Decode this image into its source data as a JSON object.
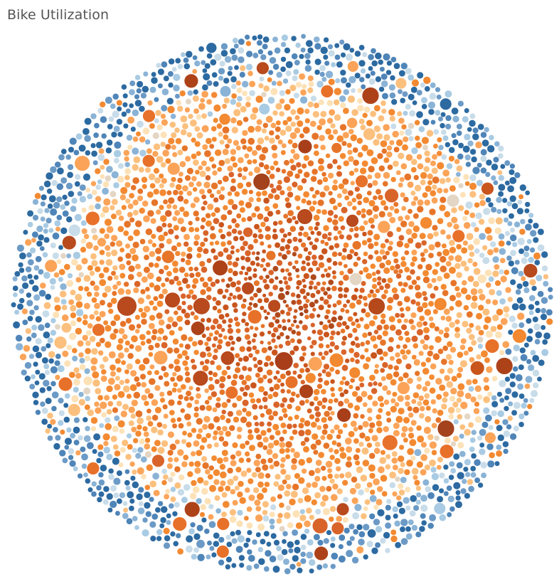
{
  "title": "Bike Utilization",
  "chart_data": {
    "type": "packed-bubble",
    "title": "Bike Utilization",
    "legend": "none",
    "color_scale": {
      "type": "diverging",
      "low_colors": [
        "#2c6aa1",
        "#4f85b8",
        "#6b9ac6",
        "#8ab3d6",
        "#a9cbe3",
        "#c8dce9",
        "#e4d6c4"
      ],
      "high_colors": [
        "#fde2b8",
        "#fcc07e",
        "#fba459",
        "#f38a32",
        "#e6752a",
        "#d9642a",
        "#c9551d",
        "#b04a1c",
        "#9e3c18"
      ]
    },
    "highlighted_bubbles": [
      {
        "color": "#b84a1d",
        "value": 14
      },
      {
        "color": "#a83f1a",
        "value": 13
      },
      {
        "color": "#b6491b",
        "value": 12
      },
      {
        "color": "#a3421c",
        "value": 12
      },
      {
        "color": "#ad4219",
        "value": 12
      },
      {
        "color": "#b84a1d",
        "value": 12
      },
      {
        "color": "#a3421c",
        "value": 12
      },
      {
        "color": "#ad4219",
        "value": 12
      },
      {
        "color": "#e8712a",
        "value": 11
      },
      {
        "color": "#b84a1d",
        "value": 11
      },
      {
        "color": "#fba459",
        "value": 11
      },
      {
        "color": "#ad4219",
        "value": 11
      },
      {
        "color": "#d9642a",
        "value": 11
      },
      {
        "color": "#b84a1d",
        "value": 11
      },
      {
        "color": "#ad4219",
        "value": 11
      },
      {
        "color": "#b84a1d",
        "value": 11
      },
      {
        "color": "#a83f1a",
        "value": 10
      },
      {
        "color": "#e8712a",
        "value": 10
      },
      {
        "color": "#b84a1d",
        "value": 10
      },
      {
        "color": "#ad4219",
        "value": 10
      },
      {
        "color": "#ad4219",
        "value": 10
      },
      {
        "color": "#c9551d",
        "value": 10
      },
      {
        "color": "#e8712a",
        "value": 10
      },
      {
        "color": "#ad4219",
        "value": 10
      },
      {
        "color": "#b84a1d",
        "value": 10
      },
      {
        "color": "#f2882f",
        "value": 10
      },
      {
        "color": "#ad4219",
        "value": 10
      },
      {
        "color": "#fba459",
        "value": 10
      },
      {
        "color": "#d9642a",
        "value": 10
      },
      {
        "color": "#e8712a",
        "value": 10
      },
      {
        "color": "#e8712a",
        "value": 10
      },
      {
        "color": "#f2882f",
        "value": 10
      },
      {
        "color": "#e8712a",
        "value": 10
      },
      {
        "color": "#b84a1d",
        "value": 10
      },
      {
        "color": "#a83f1a",
        "value": 10
      },
      {
        "color": "#e8712a",
        "value": 10
      },
      {
        "color": "#fba459",
        "value": 10
      },
      {
        "color": "#d9642a",
        "value": 9
      },
      {
        "color": "#e8712a",
        "value": 9
      },
      {
        "color": "#e8712a",
        "value": 9
      },
      {
        "color": "#e4d6c4",
        "value": 9
      },
      {
        "color": "#fcc07e",
        "value": 9
      },
      {
        "color": "#b84a1d",
        "value": 9
      },
      {
        "color": "#b84a1d",
        "value": 9
      },
      {
        "color": "#e8712a",
        "value": 9
      },
      {
        "color": "#d9642a",
        "value": 9
      },
      {
        "color": "#f2882f",
        "value": 9
      },
      {
        "color": "#b84a1d",
        "value": 9
      },
      {
        "color": "#e8712a",
        "value": 9
      },
      {
        "color": "#e8712a",
        "value": 9
      },
      {
        "color": "#c9551d",
        "value": 9
      },
      {
        "color": "#b84a1d",
        "value": 9
      },
      {
        "color": "#e8712a",
        "value": 9
      },
      {
        "color": "#b84a1d",
        "value": 9
      },
      {
        "color": "#e8712a",
        "value": 9
      },
      {
        "color": "#fcc07e",
        "value": 9
      },
      {
        "color": "#e8712a",
        "value": 9
      },
      {
        "color": "#fba459",
        "value": 9
      },
      {
        "color": "#fba459",
        "value": 9
      },
      {
        "color": "#fba459",
        "value": 9
      },
      {
        "color": "#e8712a",
        "value": 9
      },
      {
        "color": "#fba459",
        "value": 9
      },
      {
        "color": "#e8712a",
        "value": 9
      },
      {
        "color": "#e8712a",
        "value": 9
      },
      {
        "color": "#e4d6c4",
        "value": 9
      },
      {
        "color": "#a9cbe3",
        "value": 8
      },
      {
        "color": "#f2882f",
        "value": 8
      },
      {
        "color": "#fba459",
        "value": 8
      },
      {
        "color": "#fcc07e",
        "value": 8
      },
      {
        "color": "#fba459",
        "value": 8
      }
    ]
  }
}
